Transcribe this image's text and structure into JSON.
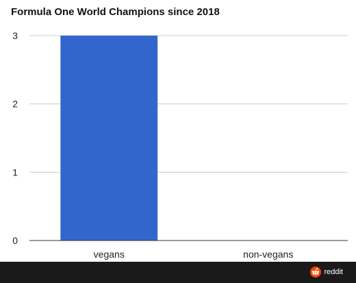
{
  "chart_data": {
    "type": "bar",
    "title": "Formula One World Champions since 2018",
    "categories": [
      "vegans",
      "non-vegans"
    ],
    "values": [
      3,
      0
    ],
    "ylim": [
      0,
      3
    ],
    "yticks": [
      0,
      1,
      2,
      3
    ],
    "xlabel": "",
    "ylabel": "",
    "grid": true,
    "bar_color": "#3366cc"
  },
  "footer": {
    "brand": "reddit",
    "logo_icon": "reddit-alien-icon",
    "logo_color": "#ff4500",
    "background": "#1a1a1b"
  }
}
